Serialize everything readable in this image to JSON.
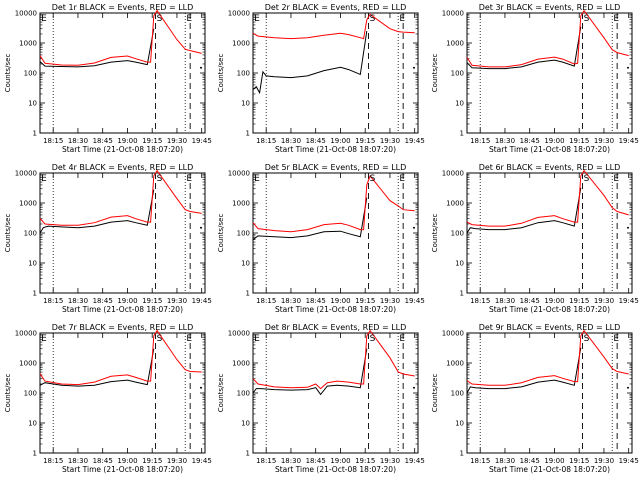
{
  "chart_data": [
    {
      "type": "line",
      "title": "Det 1r  BLACK = Events, RED = LLD",
      "xlabel": "Start Time (21-Oct-08 18:07:20)",
      "ylabel": "Counts/sec",
      "yscale": "log",
      "ylim": [
        1,
        10000
      ],
      "xticks": [
        "18:15",
        "18:30",
        "18:45",
        "19:00",
        "19:15",
        "19:30",
        "19:45"
      ],
      "yticks": [
        "1",
        "10",
        "100",
        "1000",
        "10000"
      ],
      "markers": [
        {
          "label": "E",
          "time": "18:07"
        },
        {
          "label": "S",
          "time": "19:17"
        },
        {
          "label": "E",
          "time": "19:35"
        }
      ],
      "series": [
        {
          "name": "Events",
          "color": "#000000",
          "x": [
            "18:07",
            "18:10",
            "18:20",
            "18:30",
            "18:40",
            "18:50",
            "19:00",
            "19:05",
            "19:12",
            "19:16"
          ],
          "y": [
            240,
            170,
            165,
            160,
            175,
            230,
            260,
            230,
            190,
            3000
          ]
        },
        {
          "name": "LLD",
          "color": "#ff0000",
          "x": [
            "18:07",
            "18:10",
            "18:20",
            "18:30",
            "18:40",
            "18:50",
            "19:00",
            "19:05",
            "19:12",
            "19:14",
            "19:16",
            "19:18",
            "19:30",
            "19:35",
            "19:38",
            "19:45"
          ],
          "y": [
            380,
            210,
            185,
            180,
            215,
            330,
            370,
            300,
            230,
            230,
            8000,
            12000,
            1300,
            620,
            560,
            450
          ]
        }
      ]
    },
    {
      "type": "line",
      "title": "Det 2r  BLACK = Events, RED = LLD",
      "xlabel": "Start Time (21-Oct-08 18:07:20)",
      "ylabel": "Counts/sec",
      "yscale": "log",
      "ylim": [
        1,
        10000
      ],
      "xticks": [
        "18:15",
        "18:30",
        "18:45",
        "19:00",
        "19:15",
        "19:30",
        "19:45"
      ],
      "yticks": [
        "1",
        "10",
        "100",
        "1000",
        "10000"
      ],
      "markers": [
        {
          "label": "E",
          "time": "18:07"
        },
        {
          "label": "S",
          "time": "19:17"
        },
        {
          "label": "E",
          "time": "19:35"
        }
      ],
      "series": [
        {
          "name": "Events",
          "color": "#000000",
          "x": [
            "18:07",
            "18:09",
            "18:11",
            "18:13",
            "18:15",
            "18:20",
            "18:30",
            "18:40",
            "18:50",
            "19:00",
            "19:05",
            "19:12",
            "19:16"
          ],
          "y": [
            28,
            35,
            22,
            110,
            80,
            75,
            70,
            80,
            120,
            155,
            130,
            90,
            2500
          ]
        },
        {
          "name": "LLD",
          "color": "#ff0000",
          "x": [
            "18:07",
            "18:10",
            "18:20",
            "18:30",
            "18:40",
            "18:50",
            "19:00",
            "19:05",
            "19:12",
            "19:14",
            "19:16",
            "19:18",
            "19:30",
            "19:35",
            "19:38",
            "19:45"
          ],
          "y": [
            2100,
            1700,
            1500,
            1400,
            1500,
            1800,
            2100,
            1900,
            1500,
            1400,
            6000,
            9000,
            3000,
            2400,
            2300,
            2200
          ]
        }
      ]
    },
    {
      "type": "line",
      "title": "Det 3r  BLACK = Events, RED = LLD",
      "xlabel": "Start Time (21-Oct-08 18:07:20)",
      "ylabel": "Counts/sec",
      "yscale": "log",
      "ylim": [
        1,
        10000
      ],
      "xticks": [
        "18:15",
        "18:30",
        "18:45",
        "19:00",
        "19:15",
        "19:30",
        "19:45"
      ],
      "yticks": [
        "1",
        "10",
        "100",
        "1000",
        "10000"
      ],
      "markers": [
        {
          "label": "S",
          "time": "19:17"
        },
        {
          "label": "E",
          "time": "19:35"
        }
      ],
      "series": [
        {
          "name": "Events",
          "color": "#000000",
          "x": [
            "18:07",
            "18:10",
            "18:20",
            "18:30",
            "18:40",
            "18:50",
            "19:00",
            "19:05",
            "19:12",
            "19:16"
          ],
          "y": [
            220,
            150,
            140,
            140,
            160,
            230,
            270,
            230,
            170,
            3500
          ]
        },
        {
          "name": "LLD",
          "color": "#ff0000",
          "x": [
            "18:07",
            "18:10",
            "18:20",
            "18:30",
            "18:40",
            "18:50",
            "19:00",
            "19:05",
            "19:12",
            "19:14",
            "19:16",
            "19:18",
            "19:30",
            "19:35",
            "19:38",
            "19:45"
          ],
          "y": [
            330,
            180,
            160,
            160,
            190,
            290,
            340,
            290,
            200,
            210,
            8000,
            12000,
            1500,
            600,
            480,
            380
          ]
        }
      ]
    },
    {
      "type": "line",
      "title": "Det 4r  BLACK = Events, RED = LLD",
      "xlabel": "Start Time (21-Oct-08 18:07:20)",
      "ylabel": "Counts/sec",
      "yscale": "log",
      "ylim": [
        1,
        10000
      ],
      "xticks": [
        "18:15",
        "18:30",
        "18:45",
        "19:00",
        "19:15",
        "19:30",
        "19:45"
      ],
      "yticks": [
        "1",
        "10",
        "100",
        "1000",
        "10000"
      ],
      "markers": [
        {
          "label": "E",
          "time": "18:07"
        },
        {
          "label": "S",
          "time": "19:17"
        },
        {
          "label": "E",
          "time": "19:35"
        }
      ],
      "series": [
        {
          "name": "Events",
          "color": "#000000",
          "x": [
            "18:07",
            "18:09",
            "18:12",
            "18:20",
            "18:30",
            "18:40",
            "18:50",
            "19:00",
            "19:05",
            "19:12",
            "19:16"
          ],
          "y": [
            100,
            150,
            170,
            160,
            150,
            170,
            230,
            260,
            220,
            180,
            2800
          ]
        },
        {
          "name": "LLD",
          "color": "#ff0000",
          "x": [
            "18:07",
            "18:10",
            "18:20",
            "18:30",
            "18:40",
            "18:50",
            "19:00",
            "19:05",
            "19:12",
            "19:14",
            "19:16",
            "19:18",
            "19:30",
            "19:35",
            "19:38",
            "19:45"
          ],
          "y": [
            310,
            200,
            180,
            180,
            220,
            340,
            380,
            300,
            230,
            230,
            8000,
            12000,
            1400,
            600,
            520,
            450
          ]
        }
      ]
    },
    {
      "type": "line",
      "title": "Det 5r  BLACK = Events, RED = LLD",
      "xlabel": "Start Time (21-Oct-08 18:07:20)",
      "ylabel": "Counts/sec",
      "yscale": "log",
      "ylim": [
        1,
        10000
      ],
      "xticks": [
        "18:15",
        "18:30",
        "18:45",
        "19:00",
        "19:15",
        "19:30",
        "19:45"
      ],
      "yticks": [
        "1",
        "10",
        "100",
        "1000",
        "10000"
      ],
      "markers": [
        {
          "label": "E",
          "time": "18:07"
        },
        {
          "label": "S",
          "time": "19:17"
        },
        {
          "label": "E",
          "time": "19:35"
        }
      ],
      "series": [
        {
          "name": "Events",
          "color": "#000000",
          "x": [
            "18:07",
            "18:10",
            "18:20",
            "18:30",
            "18:40",
            "18:50",
            "19:00",
            "19:05",
            "19:12",
            "19:16"
          ],
          "y": [
            60,
            80,
            75,
            70,
            80,
            110,
            115,
            95,
            75,
            1500
          ]
        },
        {
          "name": "LLD",
          "color": "#ff0000",
          "x": [
            "18:07",
            "18:10",
            "18:20",
            "18:30",
            "18:40",
            "18:50",
            "19:00",
            "19:05",
            "19:12",
            "19:14",
            "19:16",
            "19:18",
            "19:30",
            "19:35",
            "19:38",
            "19:45"
          ],
          "y": [
            220,
            140,
            120,
            110,
            130,
            190,
            210,
            180,
            130,
            130,
            4000,
            8000,
            1200,
            800,
            600,
            550
          ]
        }
      ]
    },
    {
      "type": "line",
      "title": "Det 6r  BLACK = Events, RED = LLD",
      "xlabel": "Start Time (21-Oct-08 18:07:20)",
      "ylabel": "Counts/sec",
      "yscale": "log",
      "ylim": [
        1,
        10000
      ],
      "xticks": [
        "18:15",
        "18:30",
        "18:45",
        "19:00",
        "19:15",
        "19:30",
        "19:45"
      ],
      "yticks": [
        "1",
        "10",
        "100",
        "1000",
        "10000"
      ],
      "markers": [
        {
          "label": "S",
          "time": "19:17"
        },
        {
          "label": "E",
          "time": "19:35"
        }
      ],
      "series": [
        {
          "name": "Events",
          "color": "#000000",
          "x": [
            "18:07",
            "18:09",
            "18:12",
            "18:20",
            "18:30",
            "18:40",
            "18:50",
            "19:00",
            "19:05",
            "19:12",
            "19:16"
          ],
          "y": [
            100,
            150,
            140,
            130,
            130,
            150,
            220,
            260,
            220,
            170,
            3200
          ]
        },
        {
          "name": "LLD",
          "color": "#ff0000",
          "x": [
            "18:07",
            "18:10",
            "18:20",
            "18:30",
            "18:40",
            "18:50",
            "19:00",
            "19:05",
            "19:12",
            "19:14",
            "19:16",
            "19:18",
            "19:30",
            "19:35",
            "19:38",
            "19:45"
          ],
          "y": [
            230,
            190,
            170,
            170,
            210,
            330,
            380,
            300,
            230,
            230,
            8000,
            12000,
            1800,
            700,
            520,
            400
          ]
        }
      ]
    },
    {
      "type": "line",
      "title": "Det 7r  BLACK = Events, RED = LLD",
      "xlabel": "Start Time (21-Oct-08 18:07:20)",
      "ylabel": "Counts/sec",
      "yscale": "log",
      "ylim": [
        1,
        10000
      ],
      "xticks": [
        "18:15",
        "18:30",
        "18:45",
        "19:00",
        "19:15",
        "19:30",
        "19:45"
      ],
      "yticks": [
        "1",
        "10",
        "100",
        "1000",
        "10000"
      ],
      "markers": [
        {
          "label": "E",
          "time": "18:07"
        },
        {
          "label": "S",
          "time": "19:17"
        },
        {
          "label": "E",
          "time": "19:35"
        }
      ],
      "series": [
        {
          "name": "Events",
          "color": "#000000",
          "x": [
            "18:07",
            "18:10",
            "18:20",
            "18:30",
            "18:40",
            "18:50",
            "19:00",
            "19:05",
            "19:12",
            "19:16"
          ],
          "y": [
            180,
            220,
            180,
            170,
            180,
            240,
            270,
            230,
            190,
            3000
          ]
        },
        {
          "name": "LLD",
          "color": "#ff0000",
          "x": [
            "18:07",
            "18:10",
            "18:20",
            "18:30",
            "18:40",
            "18:50",
            "19:00",
            "19:05",
            "19:12",
            "19:14",
            "19:16",
            "19:18",
            "19:30",
            "19:35",
            "19:38",
            "19:45"
          ],
          "y": [
            440,
            250,
            200,
            190,
            230,
            360,
            400,
            330,
            250,
            250,
            8000,
            12000,
            1300,
            600,
            520,
            500
          ]
        }
      ]
    },
    {
      "type": "line",
      "title": "Det 8r  BLACK = Events, RED = LLD",
      "xlabel": "Start Time (21-Oct-08 18:07:20)",
      "ylabel": "Counts/sec",
      "yscale": "log",
      "ylim": [
        1,
        10000
      ],
      "xticks": [
        "18:15",
        "18:30",
        "18:45",
        "19:00",
        "19:15",
        "19:30",
        "19:45"
      ],
      "yticks": [
        "1",
        "10",
        "100",
        "1000",
        "10000"
      ],
      "markers": [
        {
          "label": "E",
          "time": "18:07"
        },
        {
          "label": "S",
          "time": "19:17"
        },
        {
          "label": "E",
          "time": "19:35"
        }
      ],
      "series": [
        {
          "name": "Events",
          "color": "#000000",
          "x": [
            "18:07",
            "18:09",
            "18:12",
            "18:20",
            "18:30",
            "18:40",
            "18:45",
            "18:48",
            "18:52",
            "18:58",
            "19:05",
            "19:12",
            "19:16"
          ],
          "y": [
            100,
            140,
            140,
            130,
            125,
            130,
            150,
            90,
            170,
            180,
            170,
            150,
            3000
          ]
        },
        {
          "name": "LLD",
          "color": "#ff0000",
          "x": [
            "18:07",
            "18:10",
            "18:20",
            "18:30",
            "18:40",
            "18:45",
            "18:48",
            "18:52",
            "18:58",
            "19:05",
            "19:12",
            "19:14",
            "19:16",
            "19:18",
            "19:30",
            "19:35",
            "19:38",
            "19:45"
          ],
          "y": [
            300,
            200,
            160,
            150,
            155,
            200,
            140,
            220,
            250,
            230,
            200,
            200,
            8000,
            12000,
            1500,
            500,
            430,
            370
          ]
        }
      ]
    },
    {
      "type": "line",
      "title": "Det 9r  BLACK = Events, RED = LLD",
      "xlabel": "Start Time (21-Oct-08 18:07:20)",
      "ylabel": "Counts/sec",
      "yscale": "log",
      "ylim": [
        1,
        10000
      ],
      "xticks": [
        "18:15",
        "18:30",
        "18:45",
        "19:00",
        "19:15",
        "19:30",
        "19:45"
      ],
      "yticks": [
        "1",
        "10",
        "100",
        "1000",
        "10000"
      ],
      "markers": [
        {
          "label": "S",
          "time": "19:17"
        },
        {
          "label": "E",
          "time": "19:35"
        }
      ],
      "series": [
        {
          "name": "Events",
          "color": "#000000",
          "x": [
            "18:07",
            "18:09",
            "18:12",
            "18:20",
            "18:30",
            "18:40",
            "18:50",
            "19:00",
            "19:05",
            "19:12",
            "19:16"
          ],
          "y": [
            100,
            160,
            150,
            140,
            140,
            160,
            230,
            270,
            230,
            180,
            3200
          ]
        },
        {
          "name": "LLD",
          "color": "#ff0000",
          "x": [
            "18:07",
            "18:10",
            "18:20",
            "18:30",
            "18:40",
            "18:50",
            "19:00",
            "19:05",
            "19:12",
            "19:14",
            "19:16",
            "19:18",
            "19:30",
            "19:35",
            "19:38",
            "19:45"
          ],
          "y": [
            260,
            200,
            180,
            180,
            220,
            330,
            380,
            310,
            240,
            240,
            8000,
            12000,
            1600,
            650,
            520,
            430
          ]
        }
      ]
    }
  ]
}
